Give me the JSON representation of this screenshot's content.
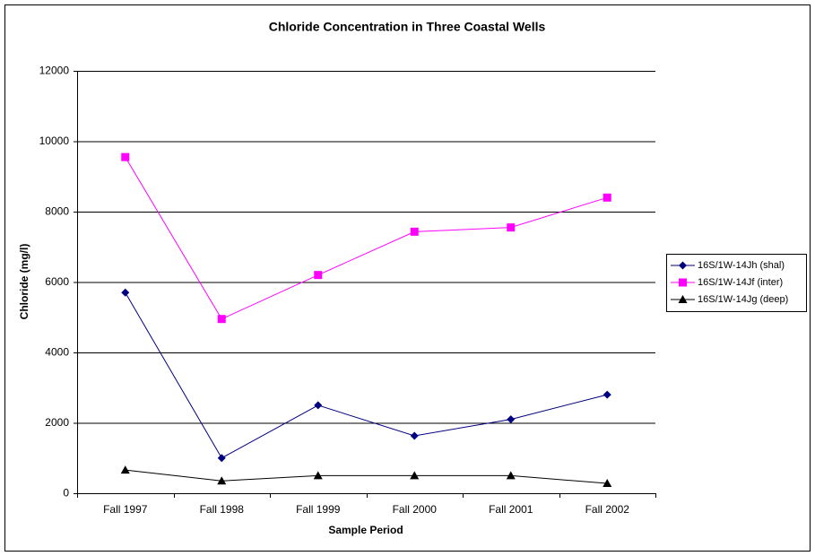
{
  "chart_data": {
    "type": "line",
    "title": "Chloride Concentration in Three Coastal Wells",
    "x_label": "Sample Period",
    "y_label": "Chloride (mg/l)",
    "categories": [
      "Fall 1997",
      "Fall 1998",
      "Fall 1999",
      "Fall 2000",
      "Fall 2001",
      "Fall 2002"
    ],
    "series": [
      {
        "name": "16S/1W-14Jh (shal)",
        "color": "#000080",
        "marker": "diamond",
        "values": [
          5700,
          1000,
          2500,
          1630,
          2100,
          2800
        ]
      },
      {
        "name": "16S/1W-14Jf (inter)",
        "color": "#ff00ff",
        "marker": "square",
        "values": [
          9550,
          4950,
          6200,
          7430,
          7550,
          8400
        ]
      },
      {
        "name": "16S/1W-14Jg (deep)",
        "color": "#000000",
        "marker": "triangle",
        "values": [
          660,
          350,
          500,
          500,
          500,
          280
        ]
      }
    ],
    "ylim": [
      0,
      12000
    ],
    "yticks": [
      0,
      2000,
      4000,
      6000,
      8000,
      10000,
      12000
    ],
    "grid": true,
    "legend": "right"
  }
}
